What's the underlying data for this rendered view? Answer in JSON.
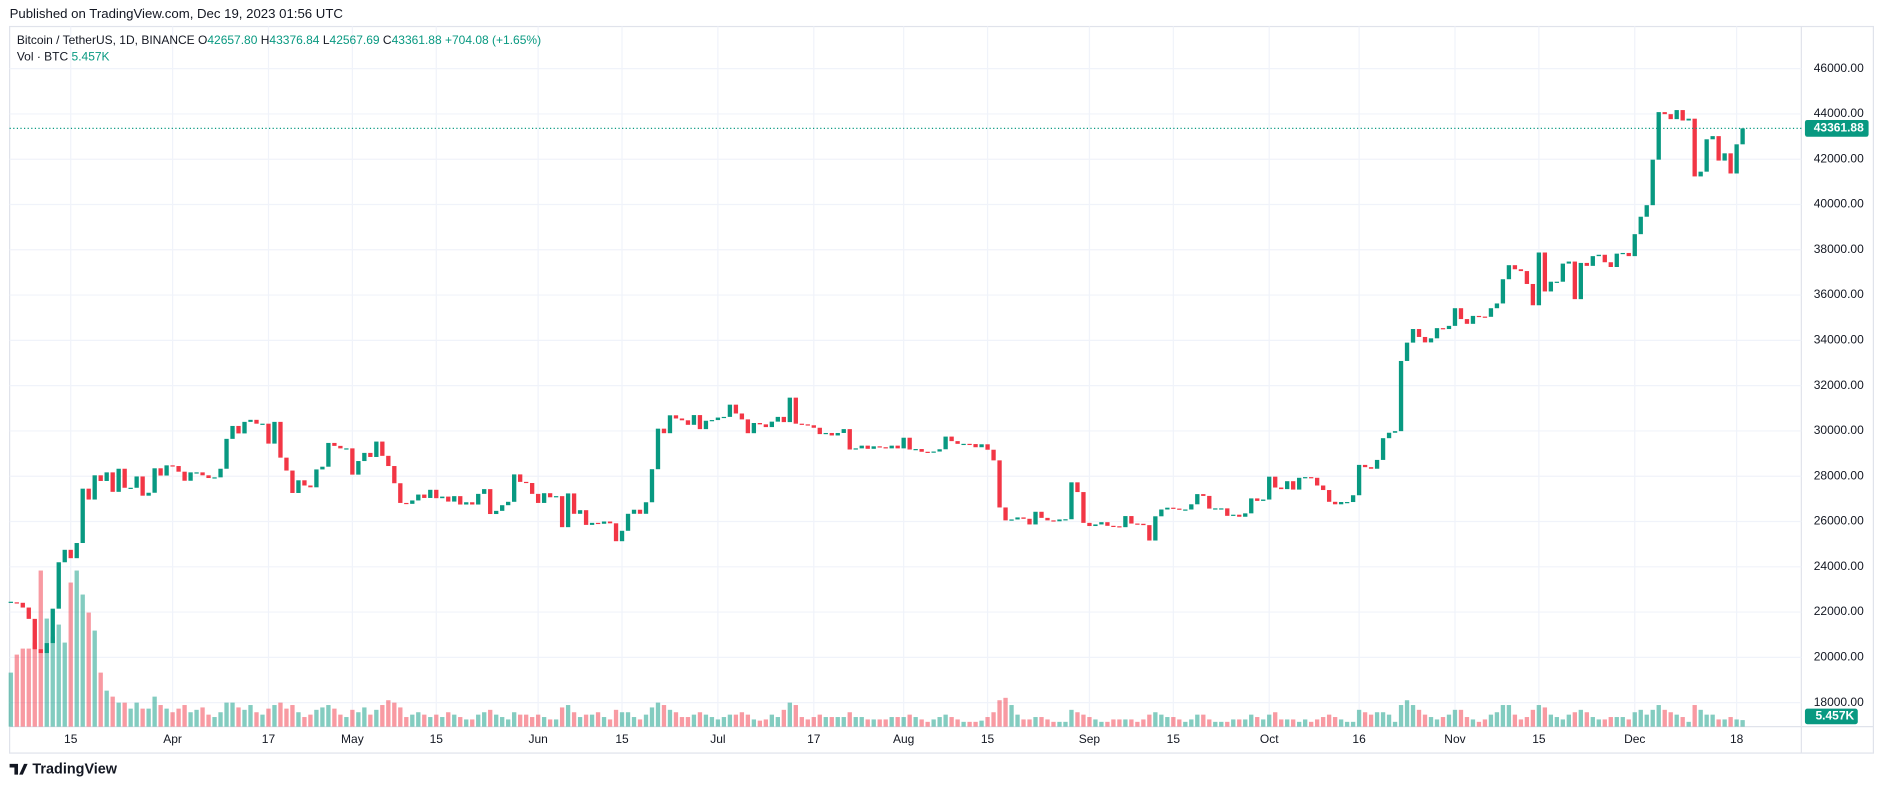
{
  "chart_data": {
    "type": "candlestick",
    "published": "Published on TradingView.com, Dec 19, 2023 01:56 UTC",
    "title": "Bitcoin / TetherUS, 1D, BINANCE",
    "ohlc": [
      {
        "label": "O",
        "value": "42657.80"
      },
      {
        "label": "H",
        "value": "43376.84"
      },
      {
        "label": "L",
        "value": "42567.69"
      },
      {
        "label": "C",
        "value": "43361.88"
      }
    ],
    "change": "+704.08 (+1.65%)",
    "volume_title": "Vol · BTC",
    "volume_label": {
      "value": 5457,
      "label": "5.457K"
    },
    "price_label": {
      "value": 43361.88,
      "label": "43361.88"
    },
    "footer": "TradingView",
    "colors": {
      "up": "#089981",
      "down": "#f23645",
      "up_volume": "rgba(8,153,129,0.5)",
      "down_volume": "rgba(242,54,69,0.5)"
    },
    "grid": true,
    "xlim": [
      -0.2,
      298.8
    ],
    "ylim": [
      16940,
      47860
    ],
    "yticks": [
      {
        "value": 18000,
        "label": "18000.00"
      },
      {
        "value": 20000,
        "label": "20000.00"
      },
      {
        "value": 22000,
        "label": "22000.00"
      },
      {
        "value": 24000,
        "label": "24000.00"
      },
      {
        "value": 26000,
        "label": "26000.00"
      },
      {
        "value": 28000,
        "label": "28000.00"
      },
      {
        "value": 30000,
        "label": "30000.00"
      },
      {
        "value": 32000,
        "label": "32000.00"
      },
      {
        "value": 34000,
        "label": "34000.00"
      },
      {
        "value": 36000,
        "label": "36000.00"
      },
      {
        "value": 38000,
        "label": "38000.00"
      },
      {
        "value": 40000,
        "label": "40000.00"
      },
      {
        "value": 42000,
        "label": "42000.00"
      },
      {
        "value": 44000,
        "label": "44000.00"
      },
      {
        "value": 46000,
        "label": "46000.00"
      }
    ],
    "xticks": [
      {
        "value": 10,
        "label": "15"
      },
      {
        "value": 27,
        "label": "Apr"
      },
      {
        "value": 43,
        "label": "17"
      },
      {
        "value": 57,
        "label": "May"
      },
      {
        "value": 71,
        "label": "15"
      },
      {
        "value": 88,
        "label": "Jun"
      },
      {
        "value": 102,
        "label": "15"
      },
      {
        "value": 118,
        "label": "Jul"
      },
      {
        "value": 134,
        "label": "17"
      },
      {
        "value": 149,
        "label": "Aug"
      },
      {
        "value": 163,
        "label": "15"
      },
      {
        "value": 180,
        "label": "Sep"
      },
      {
        "value": 194,
        "label": "15"
      },
      {
        "value": 210,
        "label": "Oct"
      },
      {
        "value": 225,
        "label": "16"
      },
      {
        "value": 241,
        "label": "Nov"
      },
      {
        "value": 255,
        "label": "15"
      },
      {
        "value": 271,
        "label": "Dec"
      },
      {
        "value": 288,
        "label": "18"
      }
    ],
    "closes": [
      22430,
      22410,
      22200,
      21700,
      20360,
      20190,
      20630,
      22150,
      24200,
      24750,
      24380,
      25050,
      27450,
      26970,
      28040,
      27790,
      28170,
      27310,
      28330,
      27490,
      27490,
      27990,
      27140,
      27270,
      28350,
      28030,
      28480,
      28450,
      28200,
      27800,
      28170,
      28170,
      28040,
      27920,
      27950,
      28330,
      29650,
      30220,
      29890,
      30400,
      30490,
      30320,
      30320,
      29440,
      30400,
      28820,
      28250,
      27260,
      27820,
      27590,
      27510,
      28300,
      28420,
      29470,
      29340,
      29230,
      29230,
      28070,
      28670,
      29030,
      28850,
      29530,
      28900,
      28450,
      27690,
      26820,
      26780,
      26930,
      27190,
      27040,
      27400,
      27030,
      27100,
      26880,
      27120,
      26750,
      26850,
      26750,
      27220,
      27430,
      26330,
      26470,
      26720,
      26870,
      28080,
      27750,
      27700,
      27220,
      26820,
      27250,
      27070,
      27120,
      25750,
      27240,
      26340,
      26500,
      25850,
      25940,
      25900,
      26000,
      25920,
      25130,
      25590,
      26340,
      26520,
      26340,
      26850,
      28310,
      30100,
      29900,
      30690,
      30550,
      30470,
      30270,
      30700,
      30080,
      30450,
      30480,
      30590,
      30620,
      31160,
      30770,
      30510,
      29900,
      30350,
      30290,
      30170,
      30410,
      30620,
      30390,
      31470,
      30320,
      30290,
      30250,
      30140,
      29860,
      29910,
      29800,
      29910,
      30080,
      29180,
      29230,
      29350,
      29210,
      29320,
      29280,
      29230,
      29350,
      29230,
      29700,
      29180,
      29200,
      29080,
      29060,
      29090,
      29190,
      29750,
      29550,
      29430,
      29430,
      29420,
      29280,
      29410,
      29170,
      28700,
      26620,
      26050,
      26090,
      26180,
      26120,
      25870,
      26430,
      26160,
      26050,
      26010,
      26090,
      26100,
      27730,
      27300,
      25940,
      25800,
      25870,
      25970,
      25810,
      25790,
      25750,
      26240,
      25910,
      25900,
      25840,
      25160,
      26230,
      26530,
      26610,
      26570,
      26530,
      26530,
      26760,
      27210,
      27130,
      26570,
      26580,
      26580,
      26250,
      26300,
      26210,
      26360,
      27020,
      26910,
      26970,
      27980,
      27500,
      27430,
      27780,
      27410,
      27930,
      27960,
      27930,
      27590,
      27390,
      26870,
      26760,
      26860,
      26860,
      27160,
      28500,
      28400,
      28330,
      28720,
      29680,
      29920,
      29990,
      33090,
      33900,
      34500,
      34150,
      33910,
      34090,
      34540,
      34500,
      34640,
      35420,
      34940,
      34730,
      35080,
      35050,
      35040,
      35420,
      35630,
      36700,
      37320,
      37140,
      37060,
      36490,
      35550,
      37880,
      36160,
      36590,
      36590,
      37390,
      37480,
      35820,
      37420,
      37290,
      37720,
      37780,
      37450,
      37240,
      37830,
      37860,
      37720,
      38690,
      39460,
      39970,
      41980,
      44080,
      43990,
      43770,
      44170,
      43710,
      43790,
      41240,
      41450,
      42880,
      43020,
      41940,
      42260,
      41370,
      42657.8,
      43361.88
    ],
    "volumes": [
      45000,
      60000,
      65000,
      65000,
      70000,
      130000,
      90000,
      75000,
      85000,
      70000,
      120000,
      130000,
      110000,
      95000,
      80000,
      45000,
      30000,
      25000,
      20000,
      20000,
      15000,
      20000,
      15000,
      15000,
      25000,
      18000,
      15000,
      12000,
      15000,
      18000,
      12000,
      14000,
      16000,
      10000,
      8000,
      12000,
      20000,
      20000,
      16000,
      14000,
      18000,
      12000,
      10000,
      15000,
      18000,
      20000,
      15000,
      18000,
      12000,
      8000,
      10000,
      14000,
      16000,
      18000,
      15000,
      10000,
      8000,
      14000,
      12000,
      16000,
      10000,
      14000,
      18000,
      22000,
      20000,
      16000,
      8000,
      10000,
      12000,
      10000,
      8000,
      10000,
      8000,
      12000,
      10000,
      8000,
      6000,
      6000,
      10000,
      12000,
      14000,
      10000,
      8000,
      6000,
      12000,
      10000,
      10000,
      8000,
      10000,
      8000,
      6000,
      6000,
      16000,
      18000,
      12000,
      8000,
      10000,
      10000,
      12000,
      8000,
      6000,
      14000,
      12000,
      12000,
      8000,
      6000,
      10000,
      16000,
      20000,
      18000,
      14000,
      12000,
      8000,
      8000,
      10000,
      12000,
      10000,
      8000,
      6000,
      8000,
      10000,
      10000,
      12000,
      10000,
      6000,
      5000,
      6000,
      10000,
      8000,
      14000,
      20000,
      18000,
      8000,
      6000,
      8000,
      10000,
      8000,
      8000,
      8000,
      8000,
      12000,
      8000,
      8000,
      6000,
      6000,
      6000,
      6000,
      8000,
      8000,
      8000,
      10000,
      8000,
      6000,
      4000,
      6000,
      8000,
      10000,
      8000,
      6000,
      4000,
      4000,
      4000,
      5000,
      8000,
      12000,
      22000,
      24000,
      18000,
      10000,
      6000,
      6000,
      8000,
      8000,
      6000,
      4000,
      4000,
      4000,
      14000,
      12000,
      10000,
      8000,
      6000,
      4000,
      4000,
      6000,
      6000,
      6000,
      6000,
      4000,
      6000,
      10000,
      12000,
      10000,
      8000,
      8000,
      6000,
      4000,
      6000,
      10000,
      10000,
      6000,
      4000,
      4000,
      4000,
      6000,
      6000,
      6000,
      10000,
      8000,
      6000,
      10000,
      12000,
      6000,
      6000,
      6000,
      4000,
      6000,
      4000,
      6000,
      8000,
      10000,
      8000,
      6000,
      4000,
      4000,
      14000,
      12000,
      10000,
      12000,
      12000,
      10000,
      4000,
      18000,
      22000,
      18000,
      14000,
      10000,
      8000,
      6000,
      8000,
      10000,
      14000,
      14000,
      8000,
      6000,
      4000,
      6000,
      10000,
      12000,
      18000,
      18000,
      10000,
      6000,
      8000,
      14000,
      18000,
      16000,
      10000,
      8000,
      6000,
      10000,
      12000,
      14000,
      12000,
      8000,
      6000,
      6000,
      8000,
      8000,
      8000,
      6000,
      12000,
      14000,
      10000,
      14000,
      18000,
      14000,
      12000,
      10000,
      8000,
      4000,
      18000,
      14000,
      10000,
      10000,
      6000,
      6000,
      8000,
      6000,
      5457
    ]
  }
}
